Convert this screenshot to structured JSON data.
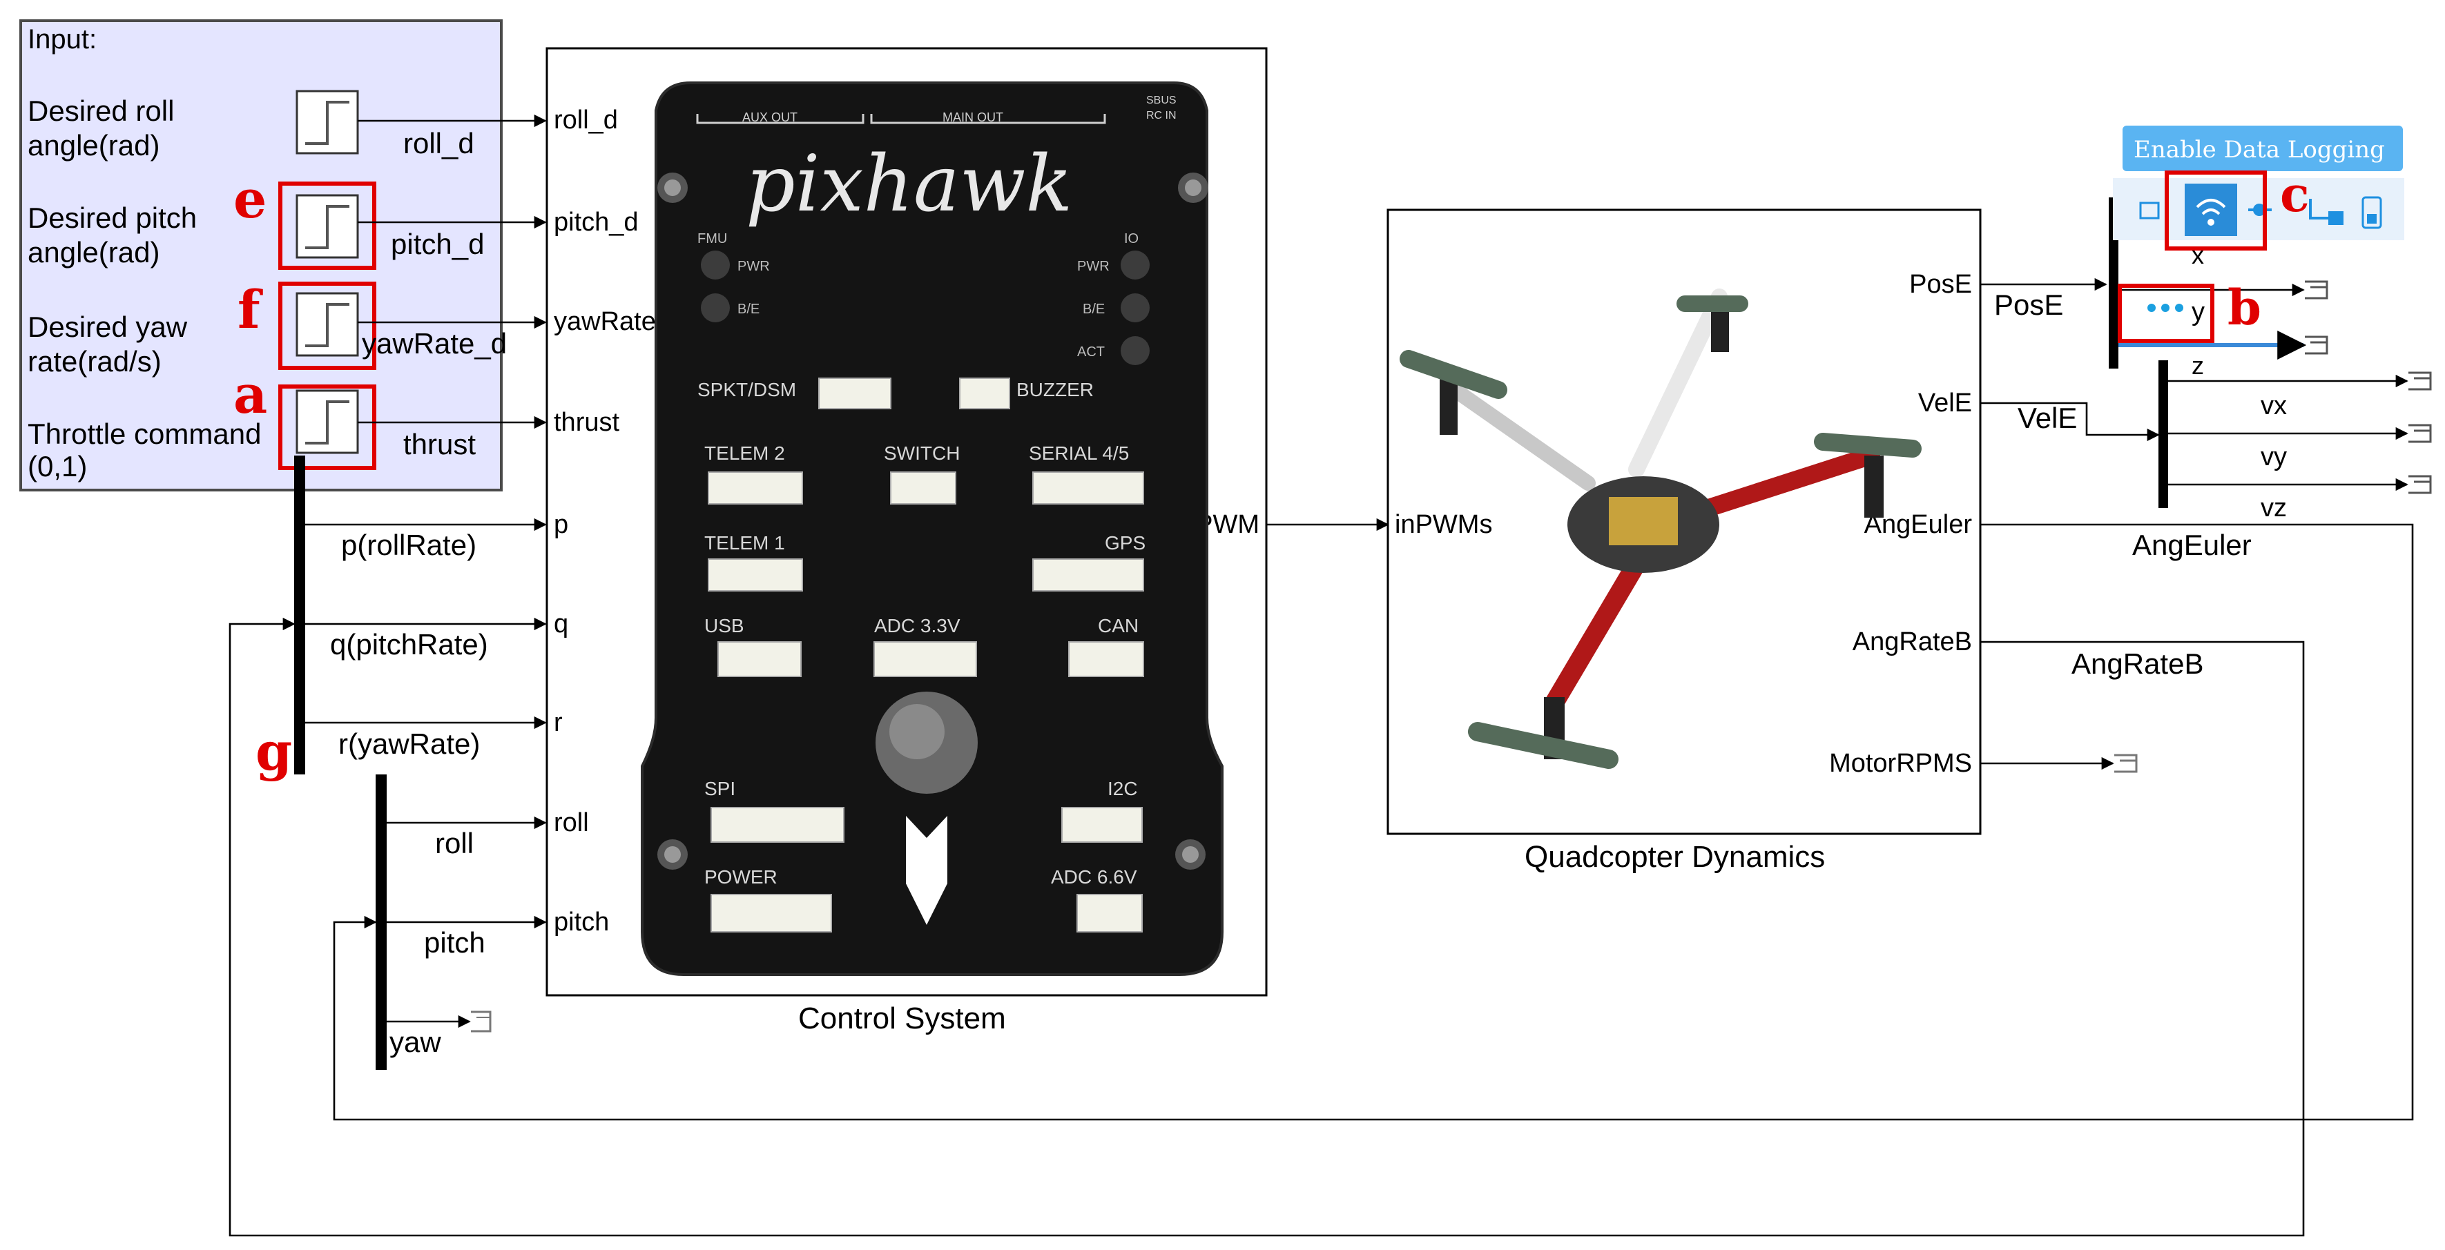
{
  "input_panel": {
    "title": "Input:",
    "rows": [
      {
        "label_line1": "Desired roll",
        "label_line2": "angle(rad)",
        "signal": "roll_d"
      },
      {
        "label_line1": "Desired pitch",
        "label_line2": "angle(rad)",
        "signal": "pitch_d"
      },
      {
        "label_line1": "Desired yaw",
        "label_line2": "rate(rad/s)",
        "signal": "yawRate_d"
      },
      {
        "label_line1": "Throttle command",
        "label_line2": "(0,1)",
        "signal": "thrust"
      }
    ]
  },
  "annotations": {
    "a": "a",
    "b": "b",
    "c": "c",
    "e": "e",
    "f": "f",
    "g": "g"
  },
  "bus_signals": {
    "p": "p(rollRate)",
    "q": "q(pitchRate)",
    "r": "r(yawRate)"
  },
  "euler_signals": {
    "roll": "roll",
    "pitch": "pitch",
    "yaw": "yaw"
  },
  "control_system": {
    "title": "Control System",
    "input_ports": [
      "roll_d",
      "pitch_d",
      "yawRate_d",
      "thrust",
      "p",
      "q",
      "r",
      "roll",
      "pitch"
    ],
    "output_port": "PWM",
    "board": {
      "brand": "pixhawk",
      "aux_out": "AUX OUT",
      "main_out": "MAIN OUT",
      "sbus": "SBUS",
      "rc_in": "RC IN",
      "fmu": "FMU",
      "io": "IO",
      "pwr": "PWR",
      "be": "B/E",
      "act": "ACT",
      "connectors": [
        "SPKT/DSM",
        "BUZZER",
        "TELEM 2",
        "SWITCH",
        "SERIAL 4/5",
        "TELEM 1",
        "GPS",
        "USB",
        "ADC 3.3V",
        "CAN",
        "SPI",
        "I2C",
        "POWER",
        "ADC 6.6V"
      ]
    }
  },
  "quad_dynamics": {
    "title": "Quadcopter Dynamics",
    "input_port": "inPWMs",
    "output_ports": [
      "PosE",
      "VelE",
      "AngEuler",
      "AngRateB",
      "MotorRPMS"
    ]
  },
  "signals": {
    "pos": "PosE",
    "vel": "VelE",
    "ang_euler": "AngEuler",
    "ang_rate": "AngRateB"
  },
  "pos_demux": [
    "x",
    "y",
    "z"
  ],
  "vel_demux": [
    "vx",
    "vy",
    "vz"
  ],
  "toolbar": {
    "logging_label": "Enable Data Logging"
  },
  "colors": {
    "panel_bg": "#e4e5ff",
    "panel_border": "#4a4a4a",
    "annotation": "#e00000",
    "logging_bg": "#5ab4f2",
    "toolbar_icon": "#1e90e0"
  }
}
